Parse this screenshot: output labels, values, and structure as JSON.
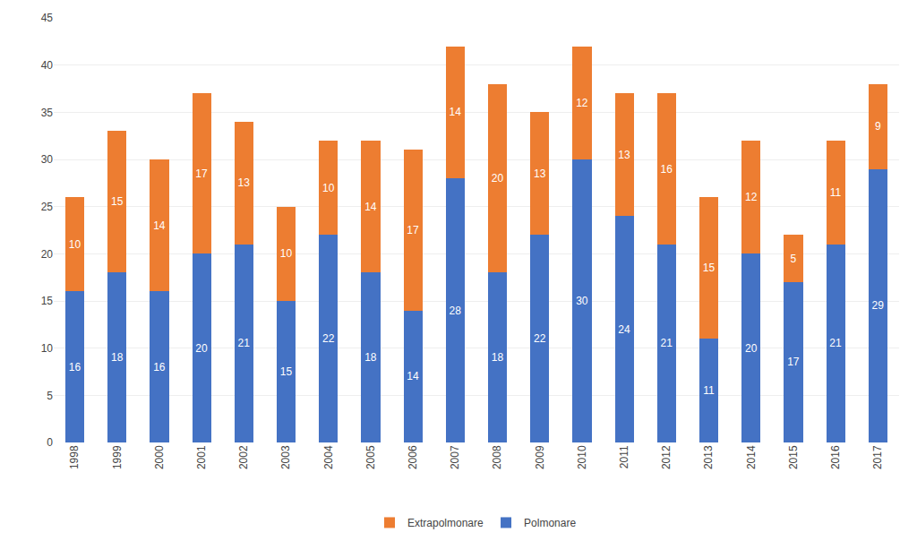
{
  "chart_data": {
    "type": "bar",
    "stacked": true,
    "categories": [
      "1998",
      "1999",
      "2000",
      "2001",
      "2002",
      "2003",
      "2004",
      "2005",
      "2006",
      "2007",
      "2008",
      "2009",
      "2010",
      "2011",
      "2012",
      "2013",
      "2014",
      "2015",
      "2016",
      "2017"
    ],
    "series": [
      {
        "name": "Polmonare",
        "color": "#4472C4",
        "values": [
          16,
          18,
          16,
          20,
          21,
          15,
          22,
          18,
          14,
          28,
          18,
          22,
          30,
          24,
          21,
          11,
          20,
          17,
          21,
          29
        ]
      },
      {
        "name": "Extrapolmonare",
        "color": "#ED7D31",
        "values": [
          10,
          15,
          14,
          17,
          13,
          10,
          10,
          14,
          17,
          14,
          20,
          13,
          12,
          13,
          16,
          15,
          12,
          5,
          11,
          9
        ]
      }
    ],
    "ylim": [
      0,
      45
    ],
    "yticks": [
      0,
      5,
      10,
      15,
      20,
      25,
      30,
      35,
      40,
      45
    ],
    "grid": true,
    "legend": "bottom",
    "data_labels": true
  }
}
